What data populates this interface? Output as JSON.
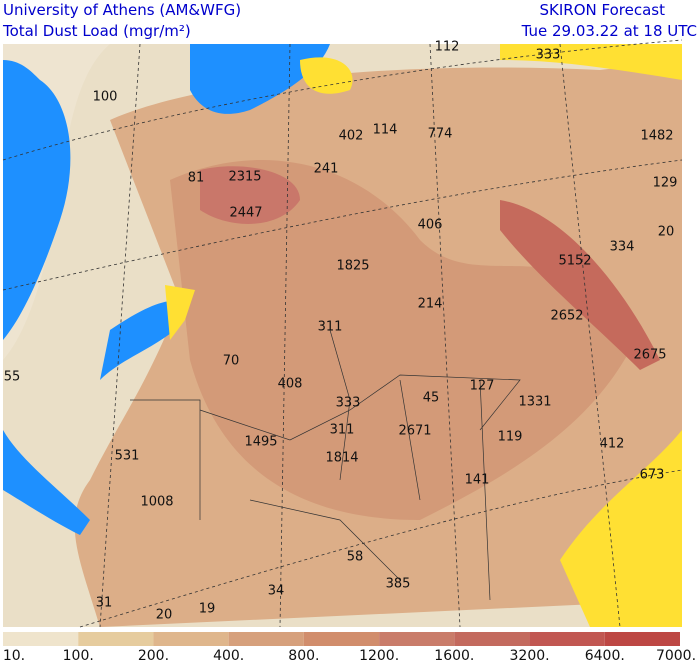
{
  "header": {
    "left_line1": "University of Athens (AM&WFG)",
    "left_line2": "Total Dust Load (mgr/m²)",
    "right_line1": "SKIRON Forecast",
    "right_line2": "Tue 29.03.22 at 18 UTC"
  },
  "map_labels": [
    100,
    112,
    333,
    402,
    114,
    774,
    1482,
    81,
    2315,
    241,
    129,
    2447,
    406,
    20,
    334,
    5152,
    1825,
    214,
    2652,
    311,
    2675,
    70,
    55,
    408,
    127,
    45,
    333,
    1331,
    2671,
    311,
    119,
    1495,
    412,
    531,
    1814,
    673,
    141,
    1008,
    58,
    385,
    34,
    31,
    20,
    19
  ],
  "colorbar": {
    "labels": [
      "10.",
      "100.",
      "200.",
      "400.",
      "800.",
      "1200.",
      "1600.",
      "3200.",
      "6400.",
      "7000."
    ]
  }
}
